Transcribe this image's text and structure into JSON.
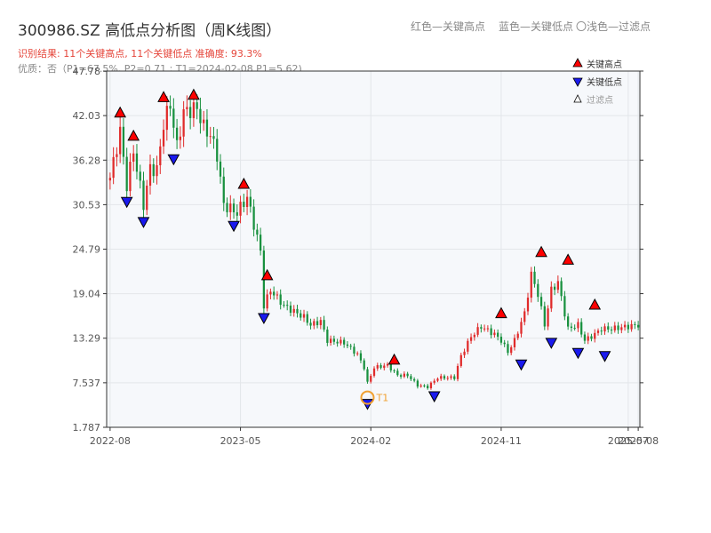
{
  "header": {
    "title": "300986.SZ 高低点分析图（周K线图）",
    "legend_red": "红色—关键高点",
    "legend_blue": "蓝色—关键低点",
    "legend_light": "〇浅色—过滤点",
    "result_text": "识别结果: 11个关键高点, 11个关键低点   准确度: 93.3%",
    "quality_text": "优质：否（P1=67.5%, P2=0.71 ; T1=2024-02-08 P1=5.62)"
  },
  "colors": {
    "up": "#e02b2b",
    "down": "#19913f",
    "high_marker": "#ff0000",
    "low_marker": "#1a1aee",
    "t1": "#f0a030",
    "plot_bg": "#f6f8fb"
  },
  "chart_data": {
    "type": "candlestick",
    "ylim": [
      1.787,
      47.78
    ],
    "y_ticks": [
      "1.787",
      "7.537",
      "13.29",
      "19.04",
      "24.79",
      "30.53",
      "36.28",
      "42.03",
      "47.78"
    ],
    "x_ticks": [
      {
        "label": "2022-08",
        "week": 0
      },
      {
        "label": "2023-05",
        "week": 39
      },
      {
        "label": "2024-02",
        "week": 78
      },
      {
        "label": "2024-11",
        "week": 117
      },
      {
        "label": "2025-07",
        "week": 155
      },
      {
        "label": "2025-08",
        "week": 158
      }
    ],
    "legend": [
      {
        "label": "关键高点",
        "marker": "high"
      },
      {
        "label": "关键低点",
        "marker": "low"
      },
      {
        "label": "过滤点",
        "marker": "filtered"
      }
    ],
    "annotation": {
      "label": "T1",
      "date": "2024-02-08",
      "week": 77,
      "value": 5.62
    },
    "anchors": [
      [
        0,
        34
      ],
      [
        3,
        40
      ],
      [
        5,
        33
      ],
      [
        7,
        37.5
      ],
      [
        10,
        30.5
      ],
      [
        12,
        35.2
      ],
      [
        14,
        35
      ],
      [
        16,
        41
      ],
      [
        18,
        43.5
      ],
      [
        20,
        38
      ],
      [
        22,
        42.5
      ],
      [
        26,
        43
      ],
      [
        28,
        40.5
      ],
      [
        30,
        39.5
      ],
      [
        32,
        37
      ],
      [
        34,
        30.5
      ],
      [
        38,
        29.5
      ],
      [
        41,
        31.5
      ],
      [
        45,
        24.5
      ],
      [
        46,
        17.5
      ],
      [
        48,
        19.5
      ],
      [
        52,
        17.5
      ],
      [
        58,
        16
      ],
      [
        60,
        15
      ],
      [
        63,
        15.5
      ],
      [
        65,
        13
      ],
      [
        70,
        12.7
      ],
      [
        74,
        11.2
      ],
      [
        76,
        9.5
      ],
      [
        77,
        7.5
      ],
      [
        79,
        9.5
      ],
      [
        83,
        9.8
      ],
      [
        86,
        8.5
      ],
      [
        89,
        8.5
      ],
      [
        92,
        7.2
      ],
      [
        95,
        7
      ],
      [
        98,
        8.2
      ],
      [
        103,
        8.2
      ],
      [
        105,
        11
      ],
      [
        108,
        13.5
      ],
      [
        111,
        14.8
      ],
      [
        115,
        13.8
      ],
      [
        117,
        13
      ],
      [
        119,
        11.5
      ],
      [
        121,
        13
      ],
      [
        124,
        16.5
      ],
      [
        126,
        21.5
      ],
      [
        128,
        19
      ],
      [
        130,
        15
      ],
      [
        132,
        19.5
      ],
      [
        134,
        20.5
      ],
      [
        135,
        18.5
      ],
      [
        137,
        14.5
      ],
      [
        140,
        15
      ],
      [
        142,
        13
      ],
      [
        145,
        13.8
      ],
      [
        147,
        14.5
      ],
      [
        150,
        14.5
      ],
      [
        158,
        15
      ]
    ],
    "key_highs": [
      {
        "week": 3,
        "value": 41.5
      },
      {
        "week": 7,
        "value": 38.5
      },
      {
        "week": 16,
        "value": 43.5
      },
      {
        "week": 25,
        "value": 43.8
      },
      {
        "week": 40,
        "value": 32.3
      },
      {
        "week": 47,
        "value": 20.5
      },
      {
        "week": 85,
        "value": 9.6
      },
      {
        "week": 117,
        "value": 15.6
      },
      {
        "week": 129,
        "value": 23.5
      },
      {
        "week": 137,
        "value": 22.5
      },
      {
        "week": 145,
        "value": 16.7
      }
    ],
    "key_lows": [
      {
        "week": 5,
        "value": 31.7
      },
      {
        "week": 10,
        "value": 29.1
      },
      {
        "week": 19,
        "value": 37.2
      },
      {
        "week": 37,
        "value": 28.6
      },
      {
        "week": 46,
        "value": 16.7
      },
      {
        "week": 77,
        "value": 5.62
      },
      {
        "week": 97,
        "value": 6.6
      },
      {
        "week": 123,
        "value": 10.7
      },
      {
        "week": 132,
        "value": 13.5
      },
      {
        "week": 140,
        "value": 12.2
      },
      {
        "week": 148,
        "value": 11.8
      }
    ]
  }
}
